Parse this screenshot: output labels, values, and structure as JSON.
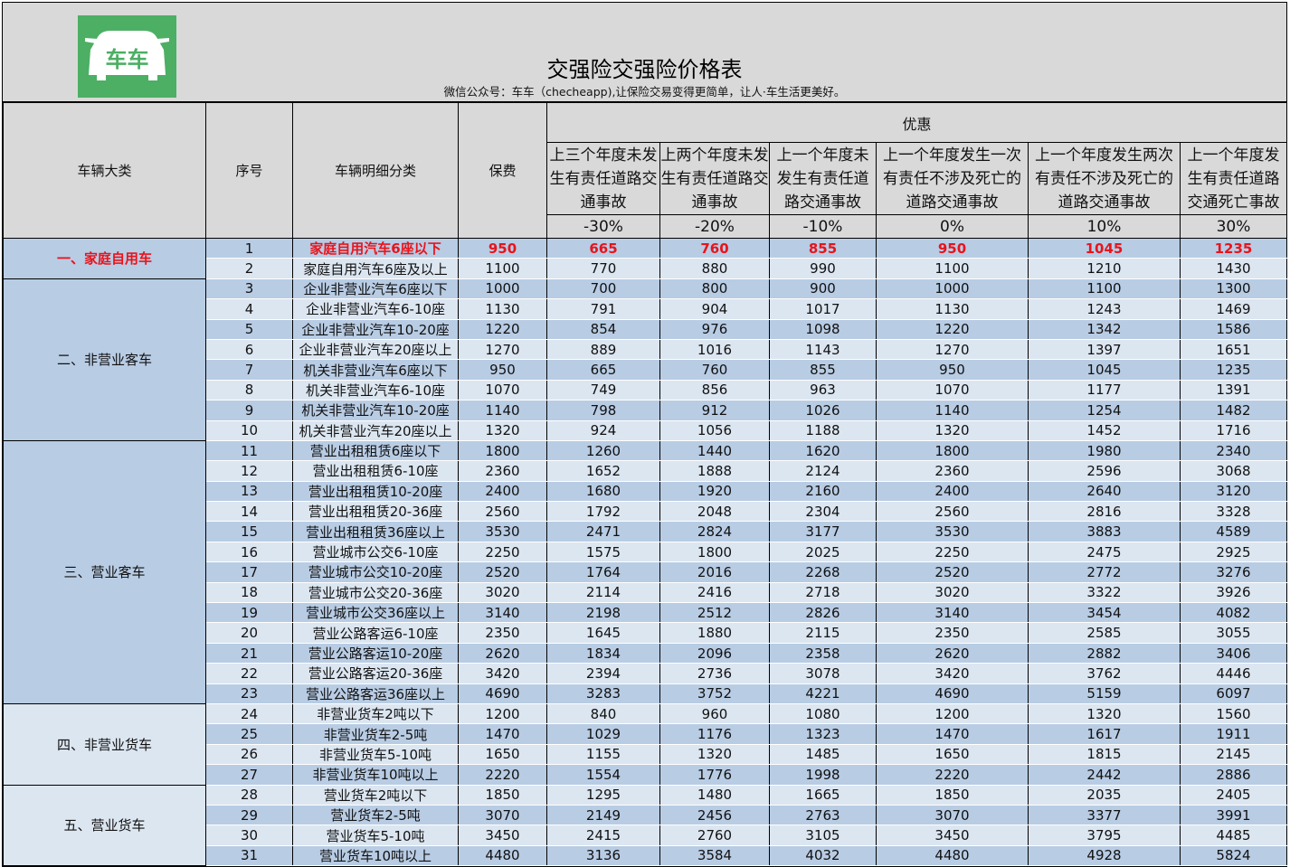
{
  "logo": {
    "text": "车车",
    "color": "#4caf64"
  },
  "title": "交强险交强险价格表",
  "subtitle": "微信公众号：车车（checheapp),让保险交易变得更简单，让人·车生活更美好。",
  "headers": {
    "category": "车辆大类",
    "seq": "序号",
    "detail": "车辆明细分类",
    "premium": "保费",
    "discount": "优惠",
    "discount_cols": [
      {
        "label": "上三个年度未发生有责任道路交通事故",
        "pct": "-30%"
      },
      {
        "label": "上两个年度未发生有责任道路交通事故",
        "pct": "-20%"
      },
      {
        "label": "上一个年度未发生有责任道路交通事故",
        "pct": "-10%"
      },
      {
        "label": "上一个年度发生一次有责任不涉及死亡的道路交通事故",
        "pct": "0%"
      },
      {
        "label": "上一个年度发生两次有责任不涉及死亡的道路交通事故",
        "pct": "10%"
      },
      {
        "label": "上一个年度发生有责任道路交通死亡事故",
        "pct": "30%"
      }
    ]
  },
  "highlight_color": "#e8141c",
  "groups": [
    {
      "name": "一、家庭自用车",
      "rows": [
        [
          "1",
          "家庭自用汽车6座以下",
          "950",
          "665",
          "760",
          "855",
          "950",
          "1045",
          "1235"
        ],
        [
          "2",
          "家庭自用汽车6座及以上",
          "1100",
          "770",
          "880",
          "990",
          "1100",
          "1210",
          "1430"
        ]
      ]
    },
    {
      "name": "二、非营业客车",
      "rows": [
        [
          "3",
          "企业非营业汽车6座以下",
          "1000",
          "700",
          "800",
          "900",
          "1000",
          "1100",
          "1300"
        ],
        [
          "4",
          "企业非营业汽车6-10座",
          "1130",
          "791",
          "904",
          "1017",
          "1130",
          "1243",
          "1469"
        ],
        [
          "5",
          "企业非营业汽车10-20座",
          "1220",
          "854",
          "976",
          "1098",
          "1220",
          "1342",
          "1586"
        ],
        [
          "6",
          "企业非营业汽车20座以上",
          "1270",
          "889",
          "1016",
          "1143",
          "1270",
          "1397",
          "1651"
        ],
        [
          "7",
          "机关非营业汽车6座以下",
          "950",
          "665",
          "760",
          "855",
          "950",
          "1045",
          "1235"
        ],
        [
          "8",
          "机关非营业汽车6-10座",
          "1070",
          "749",
          "856",
          "963",
          "1070",
          "1177",
          "1391"
        ],
        [
          "9",
          "机关非营业汽车10-20座",
          "1140",
          "798",
          "912",
          "1026",
          "1140",
          "1254",
          "1482"
        ],
        [
          "10",
          "机关非营业汽车20座以上",
          "1320",
          "924",
          "1056",
          "1188",
          "1320",
          "1452",
          "1716"
        ]
      ]
    },
    {
      "name": "三、营业客车",
      "rows": [
        [
          "11",
          "营业出租租赁6座以下",
          "1800",
          "1260",
          "1440",
          "1620",
          "1800",
          "1980",
          "2340"
        ],
        [
          "12",
          "营业出租租赁6-10座",
          "2360",
          "1652",
          "1888",
          "2124",
          "2360",
          "2596",
          "3068"
        ],
        [
          "13",
          "营业出租租赁10-20座",
          "2400",
          "1680",
          "1920",
          "2160",
          "2400",
          "2640",
          "3120"
        ],
        [
          "14",
          "营业出租租赁20-36座",
          "2560",
          "1792",
          "2048",
          "2304",
          "2560",
          "2816",
          "3328"
        ],
        [
          "15",
          "营业出租租赁36座以上",
          "3530",
          "2471",
          "2824",
          "3177",
          "3530",
          "3883",
          "4589"
        ],
        [
          "16",
          "营业城市公交6-10座",
          "2250",
          "1575",
          "1800",
          "2025",
          "2250",
          "2475",
          "2925"
        ],
        [
          "17",
          "营业城市公交10-20座",
          "2520",
          "1764",
          "2016",
          "2268",
          "2520",
          "2772",
          "3276"
        ],
        [
          "18",
          "营业城市公交20-36座",
          "3020",
          "2114",
          "2416",
          "2718",
          "3020",
          "3322",
          "3926"
        ],
        [
          "19",
          "营业城市公交36座以上",
          "3140",
          "2198",
          "2512",
          "2826",
          "3140",
          "3454",
          "4082"
        ],
        [
          "20",
          "营业公路客运6-10座",
          "2350",
          "1645",
          "1880",
          "2115",
          "2350",
          "2585",
          "3055"
        ],
        [
          "21",
          "营业公路客运10-20座",
          "2620",
          "1834",
          "2096",
          "2358",
          "2620",
          "2882",
          "3406"
        ],
        [
          "22",
          "营业公路客运20-36座",
          "3420",
          "2394",
          "2736",
          "3078",
          "3420",
          "3762",
          "4446"
        ],
        [
          "23",
          "营业公路客运36座以上",
          "4690",
          "3283",
          "3752",
          "4221",
          "4690",
          "5159",
          "6097"
        ]
      ]
    },
    {
      "name": "四、非营业货车",
      "rows": [
        [
          "24",
          "非营业货车2吨以下",
          "1200",
          "840",
          "960",
          "1080",
          "1200",
          "1320",
          "1560"
        ],
        [
          "25",
          "非营业货车2-5吨",
          "1470",
          "1029",
          "1176",
          "1323",
          "1470",
          "1617",
          "1911"
        ],
        [
          "26",
          "非营业货车5-10吨",
          "1650",
          "1155",
          "1320",
          "1485",
          "1650",
          "1815",
          "2145"
        ],
        [
          "27",
          "非营业货车10吨以上",
          "2220",
          "1554",
          "1776",
          "1998",
          "2220",
          "2442",
          "2886"
        ]
      ]
    },
    {
      "name": "五、营业货车",
      "rows": [
        [
          "28",
          "营业货车2吨以下",
          "1850",
          "1295",
          "1480",
          "1665",
          "1850",
          "2035",
          "2405"
        ],
        [
          "29",
          "营业货车2-5吨",
          "3070",
          "2149",
          "2456",
          "2763",
          "3070",
          "3377",
          "3991"
        ],
        [
          "30",
          "营业货车5-10吨",
          "3450",
          "2415",
          "2760",
          "3105",
          "3450",
          "3795",
          "4485"
        ],
        [
          "31",
          "营业货车10吨以上",
          "4480",
          "3136",
          "3584",
          "4032",
          "4480",
          "4928",
          "5824"
        ]
      ]
    }
  ]
}
